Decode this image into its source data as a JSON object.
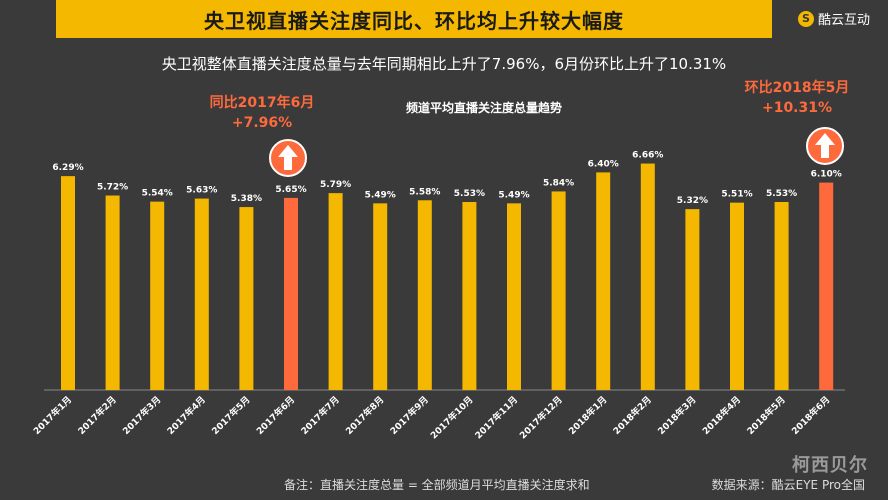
{
  "header": {
    "title": "央卫视直播关注度同比、环比均上升较大幅度",
    "brand": "酷云互动",
    "brand_icon": "S"
  },
  "subtitle": "央卫视整体直播关注度总量与去年同期相比上升了7.96%，6月份环比上升了10.31%",
  "annotations": {
    "yoy_line1": "同比2017年6月",
    "yoy_line2": "+7.96%",
    "mom_line1": "环比2018年5月",
    "mom_line2": "+10.31%"
  },
  "footer": {
    "note": "备注：直播关注度总量 = 全部频道月平均直播关注度求和",
    "source": "数据来源：酷云EYE Pro全国",
    "watermark": "柯西贝尔"
  },
  "colors": {
    "bar": "#f5b800",
    "highlight": "#ff6a3d",
    "background": "#3a3a3a"
  },
  "chart_data": {
    "type": "bar",
    "title": "频道平均直播关注度总量趋势",
    "categories": [
      "2017年1月",
      "2017年2月",
      "2017年3月",
      "2017年4月",
      "2017年5月",
      "2017年6月",
      "2017年7月",
      "2017年8月",
      "2017年9月",
      "2017年10月",
      "2017年11月",
      "2017年12月",
      "2018年1月",
      "2018年2月",
      "2018年3月",
      "2018年4月",
      "2018年5月",
      "2018年6月"
    ],
    "values": [
      6.29,
      5.72,
      5.54,
      5.63,
      5.38,
      5.65,
      5.79,
      5.49,
      5.58,
      5.53,
      5.49,
      5.84,
      6.4,
      6.66,
      5.32,
      5.51,
      5.53,
      6.1
    ],
    "labels": [
      "6.29%",
      "5.72%",
      "5.54%",
      "5.63%",
      "5.38%",
      "5.65%",
      "5.79%",
      "5.49%",
      "5.58%",
      "5.53%",
      "5.49%",
      "5.84%",
      "6.40%",
      "6.66%",
      "5.32%",
      "5.51%",
      "5.53%",
      "6.10%"
    ],
    "highlighted": [
      "2017年6月",
      "2018年6月"
    ],
    "ylim": [
      0,
      7
    ],
    "grid": false
  }
}
